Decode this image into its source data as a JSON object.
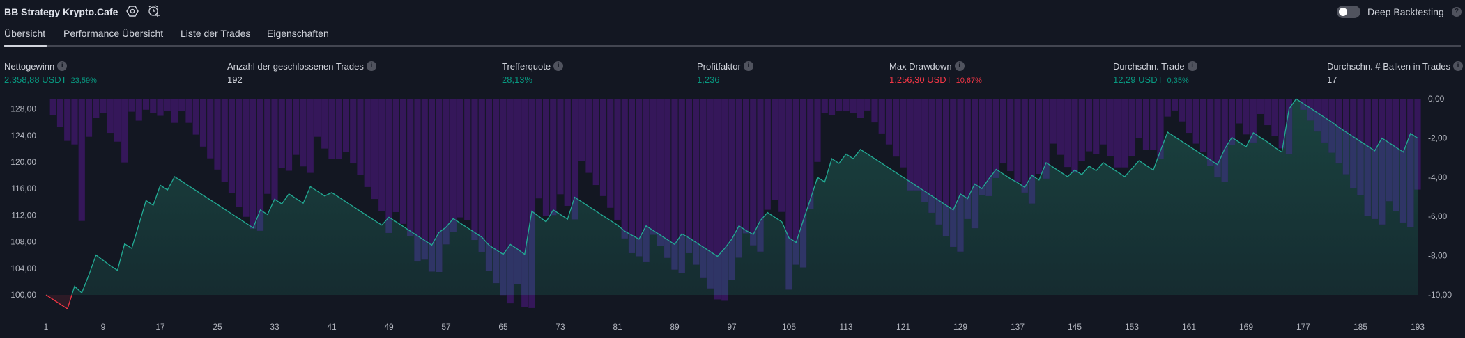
{
  "header": {
    "title": "BB Strategy Krypto.Cafe",
    "icons": [
      "settings-icon",
      "alarm-add-icon"
    ],
    "deep_backtesting_label": "Deep Backtesting",
    "deep_backtesting_enabled": false,
    "help_glyph": "?"
  },
  "tabs": [
    {
      "label": "Übersicht",
      "active": true
    },
    {
      "label": "Performance Übersicht",
      "active": false
    },
    {
      "label": "Liste der Trades",
      "active": false
    },
    {
      "label": "Eigenschaften",
      "active": false
    }
  ],
  "metrics": [
    {
      "label": "Nettogewinn",
      "value": "2.358,88 USDT",
      "sub": "23,59%",
      "tone": "green"
    },
    {
      "label": "Anzahl der geschlossenen Trades",
      "value": "192",
      "sub": "",
      "tone": "white"
    },
    {
      "label": "Trefferquote",
      "value": "28,13%",
      "sub": "",
      "tone": "green"
    },
    {
      "label": "Profitfaktor",
      "value": "1,236",
      "sub": "",
      "tone": "green"
    },
    {
      "label": "Max Drawdown",
      "value": "1.256,30 USDT",
      "sub": "10,67%",
      "tone": "red"
    },
    {
      "label": "Durchschn. Trade",
      "value": "12,29 USDT",
      "sub": "0,35%",
      "tone": "green"
    },
    {
      "label": "Durchschn. # Balken in Trades",
      "value": "17",
      "sub": "",
      "tone": "white"
    }
  ],
  "info_glyph": "i",
  "colors": {
    "background": "#131722",
    "positive": "#089981",
    "negative": "#f23645",
    "equity_line": "#22ab94",
    "drawdown_bar": "#35175a",
    "drawdown_bar_overlap": "#2f3566"
  },
  "chart_data": {
    "type": "line+bar",
    "x_ticks": [
      "1",
      "9",
      "17",
      "25",
      "33",
      "41",
      "49",
      "57",
      "65",
      "73",
      "81",
      "89",
      "97",
      "105",
      "113",
      "121",
      "129",
      "137",
      "145",
      "153",
      "161",
      "169",
      "177",
      "185",
      "193"
    ],
    "left_axis": {
      "ticks": [
        "128,00",
        "124,00",
        "120,00",
        "116,00",
        "112,00",
        "108,00",
        "104,00",
        "100,00"
      ],
      "tick_values": [
        128,
        124,
        120,
        116,
        112,
        108,
        104,
        100
      ],
      "range": [
        97.5,
        129.5
      ],
      "baseline": 100
    },
    "right_axis": {
      "ticks": [
        "0,00",
        "-2,00",
        "-4,00",
        "-6,00",
        "-8,00",
        "-10,00"
      ],
      "tick_values": [
        0,
        -2,
        -4,
        -6,
        -8,
        -10
      ],
      "range": [
        -10,
        0
      ]
    },
    "grid": false,
    "equity": [
      100.0,
      99.3,
      98.6,
      97.9,
      101.3,
      100.3,
      103.0,
      106.0,
      105.2,
      104.4,
      103.7,
      107.7,
      107.0,
      110.6,
      114.2,
      113.5,
      116.5,
      115.8,
      117.8,
      117.1,
      116.4,
      115.7,
      115.0,
      114.3,
      113.6,
      112.9,
      112.2,
      111.5,
      110.8,
      110.1,
      112.8,
      112.1,
      114.4,
      113.7,
      115.2,
      114.5,
      113.8,
      116.3,
      115.6,
      114.9,
      115.4,
      114.7,
      114.0,
      113.3,
      112.6,
      111.9,
      111.2,
      110.5,
      111.7,
      111.0,
      110.3,
      109.6,
      108.9,
      108.2,
      107.5,
      109.4,
      110.2,
      111.5,
      110.8,
      110.1,
      109.4,
      108.7,
      107.5,
      106.8,
      106.1,
      107.6,
      106.9,
      106.1,
      112.6,
      111.8,
      111.0,
      112.8,
      112.1,
      111.4,
      114.7,
      114.0,
      113.3,
      112.6,
      111.9,
      111.2,
      110.5,
      109.6,
      109.0,
      108.4,
      110.4,
      109.7,
      109.0,
      108.3,
      107.6,
      109.2,
      108.6,
      107.9,
      107.2,
      106.5,
      105.8,
      107.0,
      108.4,
      110.4,
      109.7,
      109.1,
      111.2,
      112.4,
      111.7,
      111.0,
      108.6,
      107.9,
      111.2,
      114.4,
      117.7,
      117.0,
      120.5,
      119.8,
      121.2,
      120.5,
      121.9,
      121.2,
      120.5,
      119.8,
      119.1,
      118.4,
      117.7,
      117.0,
      116.3,
      115.6,
      114.9,
      114.2,
      113.5,
      112.8,
      115.2,
      114.5,
      116.7,
      116.0,
      117.5,
      118.9,
      118.2,
      117.5,
      116.9,
      116.2,
      118.0,
      117.3,
      119.9,
      119.2,
      118.5,
      117.8,
      118.8,
      118.1,
      119.4,
      118.7,
      119.9,
      119.2,
      118.5,
      117.8,
      119.0,
      120.2,
      119.5,
      118.8,
      121.7,
      124.5,
      123.8,
      123.1,
      122.4,
      121.7,
      121.0,
      120.3,
      119.6,
      122.0,
      123.7,
      123.0,
      122.3,
      124.4,
      123.7,
      123.0,
      122.2,
      121.5,
      128.0,
      129.5,
      128.8,
      128.1,
      127.4,
      126.7,
      126.0,
      125.2,
      124.5,
      123.8,
      123.1,
      122.4,
      121.7,
      123.6,
      122.9,
      122.2,
      121.5,
      124.3,
      123.6
    ],
    "drawdown": [
      -0.02,
      -0.84,
      -1.44,
      -2.15,
      -2.33,
      -6.23,
      -1.94,
      -0.99,
      -0.71,
      -1.74,
      -2.19,
      -3.25,
      -0.66,
      -1.12,
      -0.56,
      -0.71,
      -0.87,
      -0.64,
      -1.23,
      -0.64,
      -1.23,
      -1.83,
      -2.44,
      -3.04,
      -3.61,
      -4.24,
      -4.8,
      -5.51,
      -6.02,
      -6.62,
      -6.73,
      -4.85,
      -5.15,
      -3.53,
      -3.67,
      -2.86,
      -3.45,
      -3.78,
      -1.94,
      -2.54,
      -3.07,
      -3.06,
      -2.7,
      -3.3,
      -3.9,
      -4.5,
      -5.11,
      -5.72,
      -6.84,
      -5.78,
      -6.38,
      -7.0,
      -8.3,
      -8.2,
      -8.81,
      -8.83,
      -7.42,
      -6.78,
      -6.05,
      -6.2,
      -7.2,
      -7.8,
      -8.79,
      -9.4,
      -10.01,
      -10.43,
      -9.45,
      -10.61,
      -10.67,
      -5.08,
      -5.97,
      -5.93,
      -4.87,
      -5.46,
      -6.15,
      -3.19,
      -3.78,
      -4.4,
      -4.96,
      -5.56,
      -6.17,
      -7.12,
      -7.87,
      -8.03,
      -8.33,
      -6.93,
      -7.51,
      -8.11,
      -8.71,
      -8.88,
      -7.87,
      -8.46,
      -9.14,
      -9.67,
      -10.23,
      -10.3,
      -9.24,
      -8.1,
      -6.86,
      -7.47,
      -7.79,
      -5.66,
      -5.16,
      -5.77,
      -9.73,
      -8.46,
      -8.6,
      -5.63,
      -3.22,
      -0.71,
      -0.85,
      -0.64,
      -0.64,
      -0.71,
      -0.98,
      -0.6,
      -1.21,
      -1.77,
      -2.33,
      -2.95,
      -3.5,
      -4.67,
      -4.67,
      -5.25,
      -5.81,
      -6.41,
      -6.99,
      -7.55,
      -7.79,
      -6.13,
      -6.6,
      -4.93,
      -4.96,
      -4.04,
      -3.3,
      -3.69,
      -4.24,
      -4.78,
      -5.34,
      -3.83,
      -4.07,
      -2.29,
      -2.86,
      -3.48,
      -3.77,
      -3.19,
      -2.68,
      -2.83,
      -2.33,
      -2.91,
      -3.5,
      -3.5,
      -2.94,
      -2.02,
      -2.61,
      -2.59,
      -3.07,
      -0.91,
      -0.6,
      -1.16,
      -1.74,
      -2.29,
      -2.71,
      -3.43,
      -4.01,
      -4.24,
      -2.35,
      -1.26,
      -1.82,
      -2.23,
      -0.78,
      -1.35,
      -1.9,
      -2.53,
      -2.82,
      -0.05,
      -0.56,
      -1.11,
      -1.67,
      -2.23,
      -2.75,
      -3.3,
      -3.85,
      -4.54,
      -4.93,
      -5.99,
      -6.13,
      -6.41,
      -5.22,
      -5.73,
      -6.31,
      -6.55,
      -4.63
    ]
  }
}
